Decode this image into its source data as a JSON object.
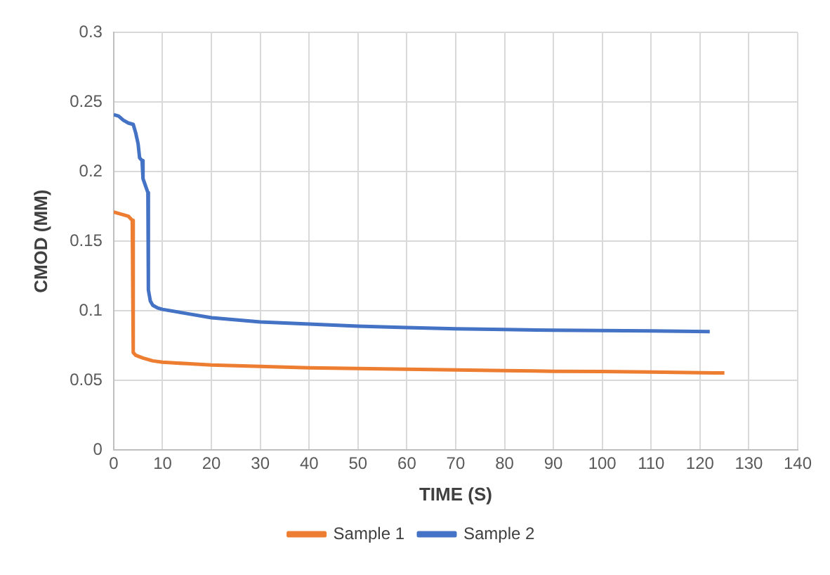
{
  "chart_data": {
    "type": "line",
    "xlabel": "TIME (S)",
    "ylabel": "CMOD (MM)",
    "xlim": [
      0,
      140
    ],
    "xticks": [
      0,
      10,
      20,
      30,
      40,
      50,
      60,
      70,
      80,
      90,
      100,
      110,
      120,
      130,
      140
    ],
    "ylim": [
      0,
      0.3
    ],
    "yticks": [
      0,
      0.05,
      0.1,
      0.15,
      0.2,
      0.25,
      0.3
    ],
    "grid": true,
    "legend": "bottom",
    "marker": "none",
    "line_style": "solid",
    "series": [
      {
        "name": "Sample 1",
        "color": "#ed7d31",
        "x": [
          0,
          2,
          3,
          3.8,
          4,
          4.5,
          6,
          8,
          10,
          15,
          20,
          30,
          40,
          50,
          60,
          70,
          80,
          90,
          100,
          110,
          120,
          125
        ],
        "values": [
          0.171,
          0.169,
          0.168,
          0.165,
          0.07,
          0.068,
          0.066,
          0.064,
          0.063,
          0.062,
          0.061,
          0.06,
          0.059,
          0.0585,
          0.058,
          0.0575,
          0.057,
          0.0565,
          0.0563,
          0.056,
          0.0555,
          0.0553
        ]
      },
      {
        "name": "Sample 2",
        "color": "#4472c4",
        "x": [
          0,
          1,
          2,
          3,
          4,
          4.5,
          5,
          5.3,
          5.8,
          6,
          6.5,
          7,
          7.1,
          7.5,
          8,
          9,
          10,
          15,
          20,
          30,
          40,
          50,
          60,
          70,
          80,
          90,
          100,
          110,
          122
        ],
        "values": [
          0.241,
          0.24,
          0.237,
          0.235,
          0.234,
          0.228,
          0.22,
          0.21,
          0.208,
          0.195,
          0.19,
          0.185,
          0.115,
          0.107,
          0.104,
          0.102,
          0.101,
          0.098,
          0.095,
          0.092,
          0.0905,
          0.089,
          0.088,
          0.087,
          0.0865,
          0.086,
          0.0858,
          0.0855,
          0.085
        ]
      }
    ]
  }
}
